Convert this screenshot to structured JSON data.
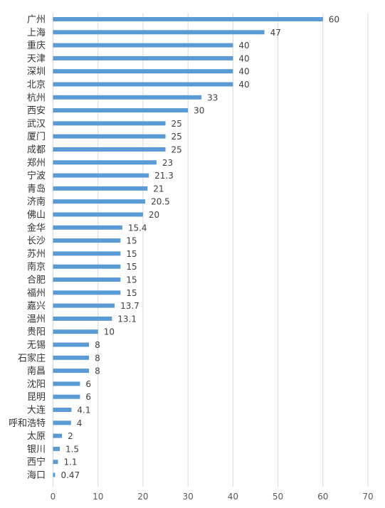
{
  "chart_data": {
    "type": "bar",
    "orientation": "horizontal",
    "title": "",
    "xlabel": "",
    "ylabel": "",
    "categories": [
      "广州",
      "上海",
      "重庆",
      "天津",
      "深圳",
      "北京",
      "杭州",
      "西安",
      "武汉",
      "厦门",
      "成都",
      "郑州",
      "宁波",
      "青岛",
      "济南",
      "佛山",
      "金华",
      "长沙",
      "苏州",
      "南京",
      "合肥",
      "福州",
      "嘉兴",
      "温州",
      "贵阳",
      "无锡",
      "石家庄",
      "南昌",
      "沈阳",
      "昆明",
      "大连",
      "呼和浩特",
      "太原",
      "银川",
      "西宁",
      "海口"
    ],
    "values": [
      60,
      47,
      40,
      40,
      40,
      40,
      33,
      30,
      25,
      25,
      25,
      23,
      21.3,
      21,
      20.5,
      20,
      15.4,
      15,
      15,
      15,
      15,
      15,
      13.7,
      13.1,
      10,
      8,
      8,
      8,
      6,
      6,
      4.1,
      4,
      2,
      1.5,
      1.1,
      0.47
    ],
    "xlim": [
      0,
      70
    ],
    "xticks": [
      0,
      10,
      20,
      30,
      40,
      50,
      60,
      70
    ],
    "grid": "vertical",
    "bar_color": "#5b9bd5",
    "legend": "none"
  }
}
